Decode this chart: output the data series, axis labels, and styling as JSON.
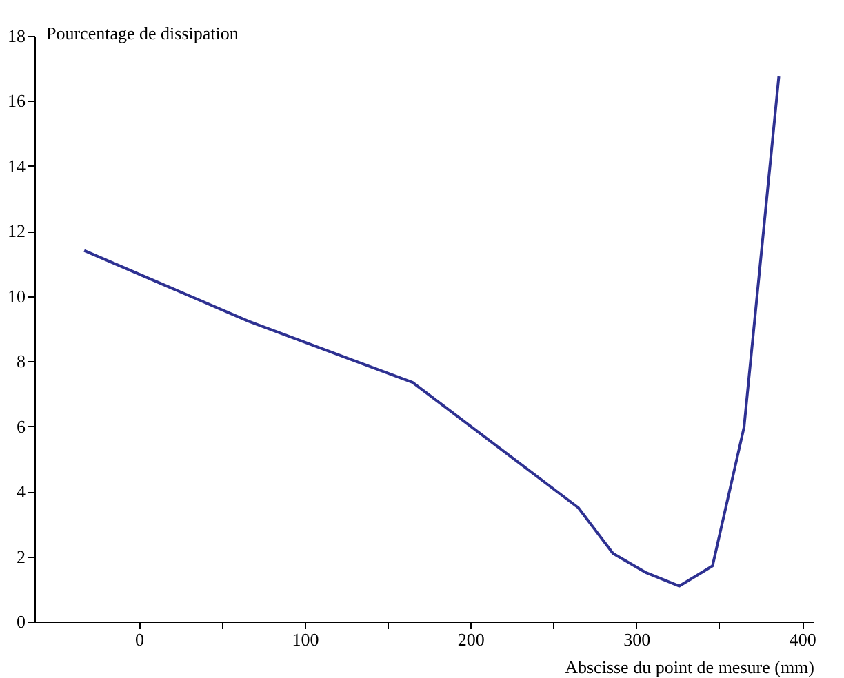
{
  "chart_data": {
    "type": "line",
    "xlabel": "Abscisse du point de mesure (mm)",
    "ylabel": "Pourcentage de dissipation",
    "x": [
      -33,
      66,
      165,
      265,
      286,
      306,
      326,
      346,
      365,
      386
    ],
    "series": [
      {
        "color": "#2e3192",
        "values": [
          11.4,
          9.23,
          7.35,
          3.5,
          2.09,
          1.5,
          1.09,
          1.71,
          5.97,
          16.75
        ]
      }
    ],
    "xlim": [
      -63,
      407
    ],
    "ylim": [
      0,
      18
    ],
    "xticks": [
      0,
      {
        "value": 50,
        "label": null
      },
      100,
      {
        "value": 150,
        "label": null
      },
      200,
      {
        "value": 250,
        "label": null
      },
      300,
      {
        "value": 350,
        "label": null
      },
      400
    ],
    "yticks": [
      0,
      2,
      4,
      6,
      8,
      10,
      12,
      14,
      16,
      18
    ],
    "grid": false,
    "legend": false,
    "marker": "none",
    "line_style": "solid"
  }
}
